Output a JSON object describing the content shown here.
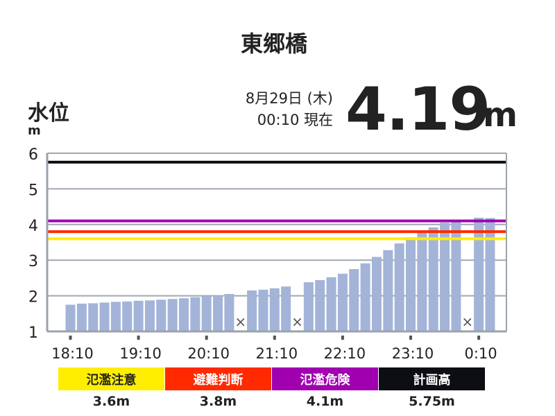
{
  "station_name": "東郷橋",
  "y_axis_title": "水位",
  "y_axis_unit": "m",
  "date_text": "8月29日 (木)",
  "time_text": "00:10 現在",
  "current_level": "4.19",
  "current_level_unit": "m",
  "colors": {
    "bar": "#a3b4d8",
    "grid": "#a0a7b3",
    "axis": "#9aa2ad",
    "tick_mark": "#555555"
  },
  "thresholds": [
    {
      "label": "氾濫注意",
      "value_text": "3.6m",
      "value": 3.6,
      "color": "#ffee00",
      "text_color": "#222222"
    },
    {
      "label": "避難判断",
      "value_text": "3.8m",
      "value": 3.8,
      "color": "#ff2a00",
      "text_color": "#ffffff"
    },
    {
      "label": "氾濫危険",
      "value_text": "4.1m",
      "value": 4.1,
      "color": "#a000b0",
      "text_color": "#ffffff"
    },
    {
      "label": "計画高",
      "value_text": "5.75m",
      "value": 5.75,
      "color": "#0d0d14",
      "text_color": "#ffffff"
    }
  ],
  "chart_data": {
    "type": "bar",
    "ylim": [
      1,
      6
    ],
    "y_ticks": [
      "1",
      "2",
      "3",
      "4",
      "5",
      "6"
    ],
    "x_tick_labels": [
      "18:10",
      "19:10",
      "20:10",
      "21:10",
      "22:10",
      "23:10",
      "0:10"
    ],
    "interval_minutes": 10,
    "missing_marker": "×",
    "values": [
      1.75,
      1.78,
      1.79,
      1.81,
      1.83,
      1.84,
      1.86,
      1.87,
      1.89,
      1.91,
      1.93,
      1.96,
      2.0,
      2.02,
      2.05,
      null,
      2.15,
      2.17,
      2.21,
      2.26,
      null,
      2.38,
      2.44,
      2.52,
      2.62,
      2.75,
      2.91,
      3.09,
      3.28,
      3.47,
      3.64,
      3.78,
      3.92,
      4.05,
      4.1,
      null,
      4.19,
      4.18
    ]
  }
}
